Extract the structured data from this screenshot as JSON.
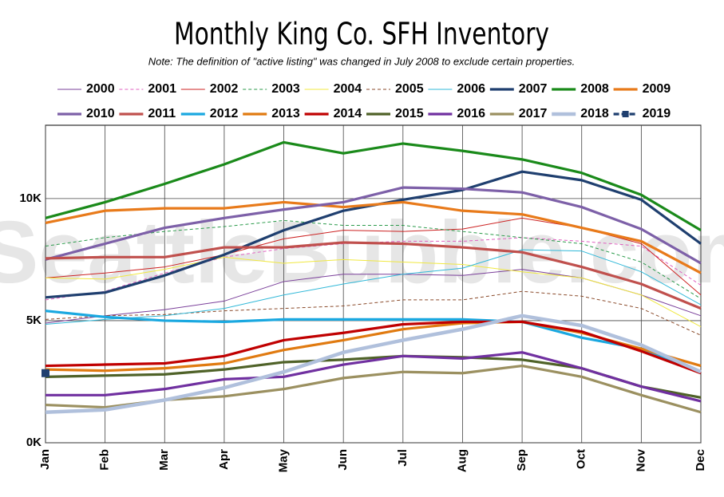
{
  "chart_data": {
    "type": "line",
    "title": "Monthly King Co. SFH Inventory",
    "subtitle": "Note: The definition of \"active listing\" was changed in July 2008 to exclude certain properties.",
    "watermark": "SeattleBubble.com",
    "categories": [
      "Jan",
      "Feb",
      "Mar",
      "Apr",
      "May",
      "Jun",
      "Jul",
      "Aug",
      "Sep",
      "Oct",
      "Nov",
      "Dec"
    ],
    "ylim": [
      0,
      13000
    ],
    "yticks": [
      {
        "value": 0,
        "label": "0K"
      },
      {
        "value": 5000,
        "label": "5K"
      },
      {
        "value": 10000,
        "label": "10K"
      }
    ],
    "grid": true,
    "series": [
      {
        "name": "2000",
        "color": "#7a3f9a",
        "values": [
          4900,
          5200,
          5450,
          5800,
          6600,
          6900,
          6900,
          6850,
          7100,
          6750,
          6050,
          5200
        ]
      },
      {
        "name": "2001",
        "color": "#e060c0",
        "dashed": true,
        "values": [
          5850,
          6200,
          6950,
          7600,
          7950,
          8150,
          8250,
          8250,
          8400,
          8250,
          8050,
          6450
        ]
      },
      {
        "name": "2002",
        "color": "#cc2222",
        "values": [
          6750,
          6950,
          7200,
          7700,
          8350,
          8700,
          8650,
          8750,
          9200,
          8800,
          8150,
          6050
        ]
      },
      {
        "name": "2003",
        "color": "#2a9a4a",
        "dashed": true,
        "values": [
          8050,
          8400,
          8650,
          8850,
          9100,
          8900,
          8900,
          8650,
          8400,
          8150,
          7400,
          5900
        ]
      },
      {
        "name": "2004",
        "color": "#f0e840",
        "values": [
          6750,
          6700,
          7100,
          7600,
          7350,
          7500,
          7400,
          7300,
          7000,
          6750,
          6050,
          4750
        ]
      },
      {
        "name": "2005",
        "color": "#8a4a2a",
        "dashed": true,
        "values": [
          5050,
          5200,
          5250,
          5400,
          5500,
          5600,
          5850,
          5850,
          6200,
          6000,
          5500,
          4400
        ]
      },
      {
        "name": "2006",
        "color": "#30b8d8",
        "values": [
          4850,
          5050,
          5200,
          5500,
          6050,
          6500,
          6900,
          7150,
          7900,
          7850,
          7000,
          5650
        ]
      },
      {
        "name": "2007",
        "color": "#1f3f6f",
        "values": [
          5950,
          6150,
          6850,
          7700,
          8700,
          9500,
          9950,
          10350,
          11100,
          10750,
          9950,
          8150
        ]
      },
      {
        "name": "2008",
        "color": "#1a8a1a",
        "values": [
          9200,
          9850,
          10600,
          11400,
          12300,
          11850,
          12250,
          11950,
          11600,
          11050,
          10150,
          8700
        ]
      },
      {
        "name": "2009",
        "color": "#e87a1a",
        "values": [
          9000,
          9500,
          9600,
          9600,
          9850,
          9650,
          9850,
          9500,
          9350,
          8800,
          8250,
          6950
        ]
      },
      {
        "name": "2010",
        "color": "#7d60a8",
        "values": [
          7500,
          8150,
          8800,
          9200,
          9550,
          9850,
          10450,
          10400,
          10250,
          9650,
          8750,
          7350
        ]
      },
      {
        "name": "2011",
        "color": "#c0504d",
        "values": [
          7550,
          7600,
          7600,
          8000,
          8000,
          8200,
          8150,
          8000,
          7800,
          7200,
          6500,
          5500
        ]
      },
      {
        "name": "2012",
        "color": "#1aa8e0",
        "values": [
          5400,
          5150,
          5000,
          4950,
          5050,
          5050,
          5050,
          5050,
          4950,
          4300,
          3850,
          2900
        ]
      },
      {
        "name": "2013",
        "color": "#e07a10",
        "values": [
          3000,
          2950,
          3050,
          3250,
          3800,
          4200,
          4650,
          4900,
          4950,
          4500,
          3850,
          3150
        ]
      },
      {
        "name": "2014",
        "color": "#c00000",
        "values": [
          3150,
          3200,
          3250,
          3550,
          4200,
          4500,
          4850,
          4950,
          4950,
          4550,
          3750,
          2850
        ]
      },
      {
        "name": "2015",
        "color": "#4f6228",
        "values": [
          2700,
          2750,
          2800,
          3000,
          3300,
          3400,
          3550,
          3500,
          3400,
          3050,
          2300,
          1850
        ]
      },
      {
        "name": "2016",
        "color": "#7030a0",
        "values": [
          1950,
          1950,
          2200,
          2600,
          2700,
          3200,
          3550,
          3450,
          3700,
          3050,
          2300,
          1700
        ]
      },
      {
        "name": "2017",
        "color": "#9b9060",
        "values": [
          1550,
          1450,
          1750,
          1900,
          2200,
          2650,
          2900,
          2850,
          3150,
          2700,
          1950,
          1250
        ]
      },
      {
        "name": "2018",
        "color": "#b0c0dc",
        "values": [
          1250,
          1350,
          1750,
          2250,
          2900,
          3700,
          4200,
          4650,
          5200,
          4800,
          4000,
          2900
        ]
      },
      {
        "name": "2019",
        "color": "#1f3f6f",
        "dashed": true,
        "marker": "square",
        "values": [
          2850,
          null,
          null,
          null,
          null,
          null,
          null,
          null,
          null,
          null,
          null,
          null
        ]
      }
    ]
  }
}
